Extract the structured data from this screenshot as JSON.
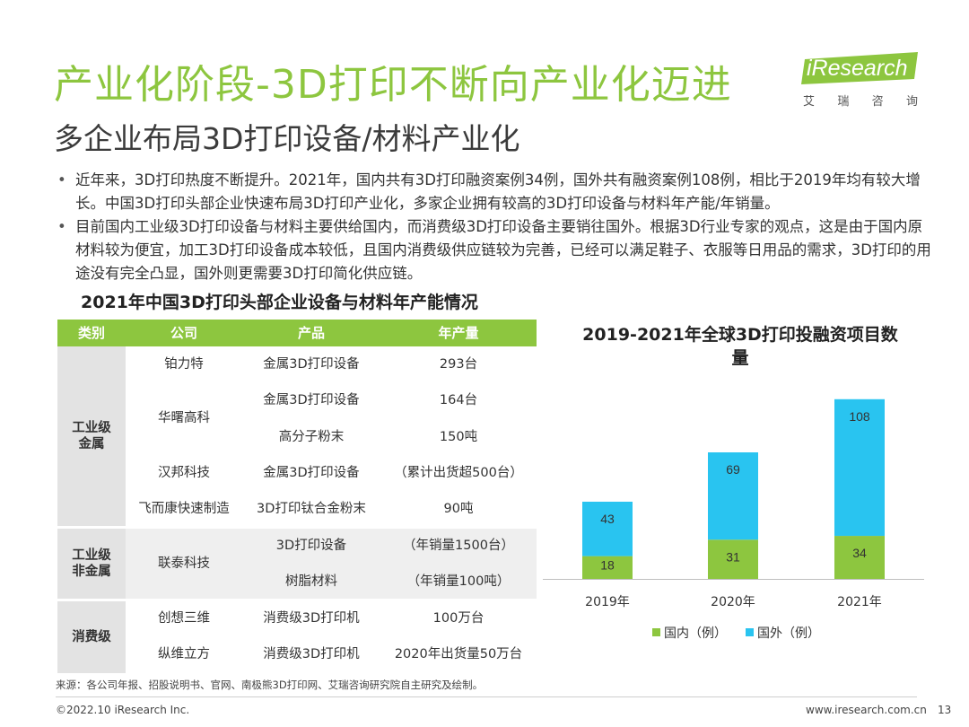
{
  "header": {
    "title": "产业化阶段-3D打印不断向产业化迈进",
    "subtitle": "多企业布局3D打印设备/材料产业化",
    "logo_text": "iResearch",
    "logo_sub": [
      "艾",
      "瑞",
      "咨",
      "询"
    ],
    "accent_color": "#8dc63f"
  },
  "bullets": [
    "近年来，3D打印热度不断提升。2021年，国内共有3D打印融资案例34例，国外共有融资案例108例，相比于2019年均有较大增长。中国3D打印头部企业快速布局3D打印产业化，多家企业拥有较高的3D打印设备与材料年产能/年销量。",
    "目前国内工业级3D打印设备与材料主要供给国内，而消费级3D打印设备主要销往国外。根据3D行业专家的观点，这是由于国内原材料较为便宜，加工3D打印设备成本较低，且国内消费级供应链较为完善，已经可以满足鞋子、衣服等日用品的需求，3D打印的用途没有完全凸显，国外则更需要3D打印简化供应链。"
  ],
  "table": {
    "title": "2021年中国3D打印头部企业设备与材料年产能情况",
    "headers": [
      "类别",
      "公司",
      "产品",
      "年产量"
    ],
    "categories": [
      "工业级\n金属",
      "工业级\n非金属",
      "消费级"
    ],
    "rows": [
      {
        "company": "铂力特",
        "product": "金属3D打印设备",
        "output": "293台"
      },
      {
        "company": "华曙高科",
        "product": "金属3D打印设备",
        "output": "164台"
      },
      {
        "company": "",
        "product": "高分子粉末",
        "output": "150吨"
      },
      {
        "company": "汉邦科技",
        "product": "金属3D打印设备",
        "output": "（累计出货超500台）"
      },
      {
        "company": "飞而康快速制造",
        "product": "3D打印钛合金粉末",
        "output": "90吨"
      },
      {
        "company": "联泰科技",
        "product": "3D打印设备",
        "output": "（年销量1500台）"
      },
      {
        "company": "",
        "product": "树脂材料",
        "output": "（年销量100吨）"
      },
      {
        "company": "创想三维",
        "product": "消费级3D打印机",
        "output": "100万台"
      },
      {
        "company": "纵维立方",
        "product": "消费级3D打印机",
        "output": "2020年出货量50万台"
      }
    ]
  },
  "chart_data": {
    "type": "bar",
    "stacked": true,
    "title": "2019-2021年全球3D打印投融资项目数量",
    "categories": [
      "2019年",
      "2020年",
      "2021年"
    ],
    "series": [
      {
        "name": "国内（例）",
        "values": [
          18,
          31,
          34
        ],
        "color": "#8dc63f"
      },
      {
        "name": "国外（例）",
        "values": [
          43,
          69,
          108
        ],
        "color": "#29c4f0"
      }
    ],
    "legend_position": "bottom",
    "grid": false
  },
  "footer": {
    "source": "来源：各公司年报、招股说明书、官网、南极熊3D打印网、艾瑞咨询研究院自主研究及绘制。",
    "copyright": "©2022.10 iResearch Inc.",
    "website": "www.iresearch.com.cn",
    "page": "13"
  }
}
